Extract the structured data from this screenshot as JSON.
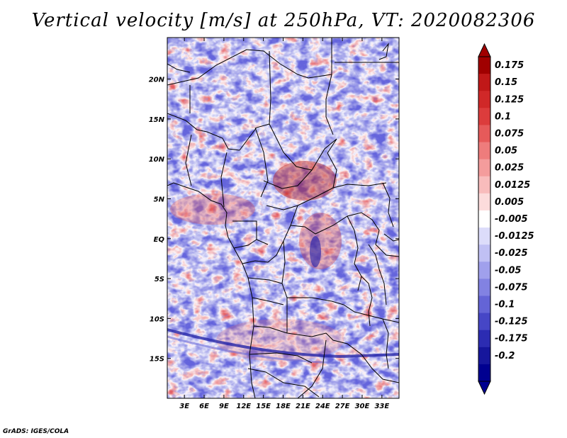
{
  "title": "Vertical velocity [m/s] at 250hPa, VT: 2020082306",
  "credit": "GrADS: IGES/COLA",
  "map": {
    "lon_labels": [
      "3E",
      "6E",
      "9E",
      "12E",
      "15E",
      "18E",
      "21E",
      "24E",
      "27E",
      "30E",
      "33E"
    ],
    "lon_values": [
      3,
      6,
      9,
      12,
      15,
      18,
      21,
      24,
      27,
      30,
      33
    ],
    "lat_labels": [
      "20N",
      "15N",
      "10N",
      "5N",
      "EQ",
      "5S",
      "10S",
      "15S"
    ],
    "lat_values": [
      20,
      15,
      10,
      5,
      0,
      -5,
      -10,
      -15
    ],
    "lon_range": [
      0.4,
      35.6
    ],
    "lat_range": [
      -20,
      25.2
    ]
  },
  "colorbar": {
    "labels": [
      "0.175",
      "0.15",
      "0.125",
      "0.1",
      "0.075",
      "0.05",
      "0.025",
      "0.0125",
      "0.005",
      "-0.005",
      "-0.0125",
      "-0.025",
      "-0.05",
      "-0.075",
      "-0.1",
      "-0.125",
      "-0.175",
      "-0.2"
    ],
    "colors": [
      "#a00000",
      "#c01818",
      "#d02828",
      "#dc3c3c",
      "#e65a5a",
      "#ee7c7c",
      "#f49c9c",
      "#f8bcbc",
      "#fcdcdc",
      "#ffffff",
      "#dcdcfa",
      "#c0c0f4",
      "#a0a0ec",
      "#8282e2",
      "#6464d6",
      "#4646c6",
      "#2c2cb2",
      "#16169c",
      "#000090"
    ],
    "top_color": "#a00000",
    "bottom_color": "#000090"
  }
}
